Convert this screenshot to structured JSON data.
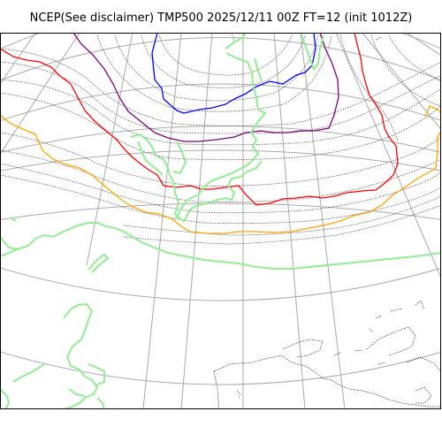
{
  "figure": {
    "title": "NCEP(See disclaimer) TMP500 2025/12/11 00Z FT=12 (init 1012Z)"
  },
  "colors": {
    "frame": "#000000",
    "graticule": "#aaaaaa",
    "isotherm_minor": "#555555",
    "coastline": "#90ee90",
    "coastline_other": "#333333",
    "contour_blue": "#0000ff",
    "contour_purple": "#800080",
    "contour_red": "#ff0000",
    "contour_orange": "#ffa500"
  }
}
